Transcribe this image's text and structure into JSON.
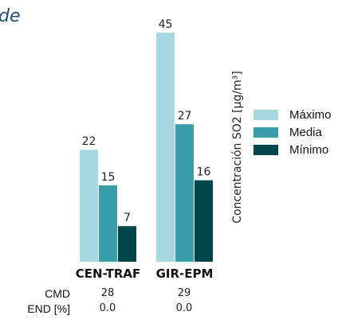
{
  "corner_text": "de",
  "chart_data": {
    "type": "bar",
    "categories": [
      "CEN-TRAF",
      "GIR-EPM"
    ],
    "series": [
      {
        "name": "Máximo",
        "values": [
          22,
          45
        ],
        "color": "#a6d8e2"
      },
      {
        "name": "Media",
        "values": [
          15,
          27
        ],
        "color": "#3a9ea8"
      },
      {
        "name": "Mínimo",
        "values": [
          7,
          16
        ],
        "color": "#00474d"
      }
    ],
    "ylabel": "Concentración SO2 [µg/m³]",
    "ylim": [
      0,
      50
    ],
    "grid": false,
    "legend_position": "right"
  },
  "table": {
    "rows": [
      {
        "label": "CMD",
        "values": [
          "28",
          "29"
        ]
      },
      {
        "label": "END [%]",
        "values": [
          "0.0",
          "0.0"
        ]
      }
    ]
  }
}
